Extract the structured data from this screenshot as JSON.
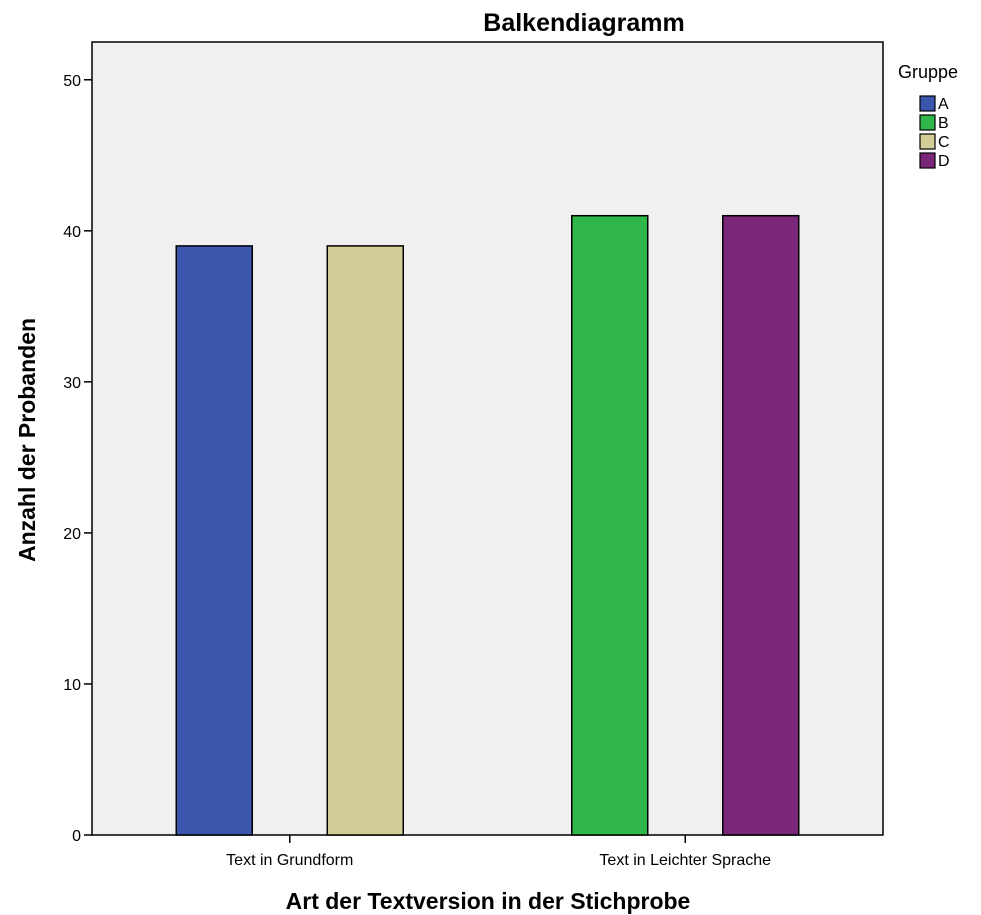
{
  "chart_data": {
    "type": "bar",
    "title": "Balkendiagramm",
    "xlabel": "Art der Textversion in der Stichprobe",
    "ylabel": "Anzahl der Probanden",
    "categories": [
      "Text in Grundform",
      "Text in Leichter Sprache"
    ],
    "ylim": [
      0,
      52.5
    ],
    "yticks": [
      0,
      10,
      20,
      30,
      40,
      50
    ],
    "grid": false,
    "legend": {
      "title": "Gruppe",
      "position": "top-right"
    },
    "series": [
      {
        "name": "A",
        "color": "#3c56ad",
        "values": [
          39,
          null
        ]
      },
      {
        "name": "B",
        "color": "#2fb849",
        "values": [
          null,
          41
        ]
      },
      {
        "name": "C",
        "color": "#d3ce98",
        "values": [
          39,
          null
        ]
      },
      {
        "name": "D",
        "color": "#7b2779",
        "values": [
          null,
          41
        ]
      }
    ],
    "plot_background": "#f0f0f0"
  }
}
